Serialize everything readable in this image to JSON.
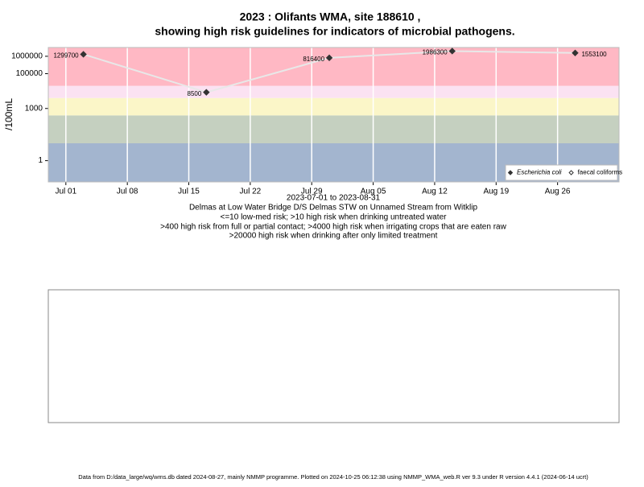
{
  "chart_data": {
    "type": "line",
    "title": "2023 : Olifants WMA, site 188610 ,",
    "subtitle": "showing high risk guidelines for indicators of microbial pathogens.",
    "y_label": "/100mL",
    "x_label": "2023-07-01 to 2023-08-31",
    "notes": [
      "Delmas at Low Water Bridge D/S Delmas STW on Unnamed Stream from Witklip",
      "<=10 low-med risk; >10 high risk when drinking untreated water",
      ">400 high risk from full or partial contact; >4000 high risk when irrigating crops that are eaten raw",
      ">20000 high risk when drinking after only limited treatment"
    ],
    "footer": "Data from D:/data_large/wq/wms.db dated 2024-08-27, mainly NMMP programme. Plotted on 2024-10-25 06:12:38 using NMMP_WMA_web.R ver 9.3 under R version 4.4.1 (2024-06-14 ucrt)",
    "log_y": true,
    "x": [
      "2023-07-03",
      "2023-07-17",
      "2023-07-31",
      "2023-08-14",
      "2023-08-28"
    ],
    "xlim": [
      "2023-06-29",
      "2023-09-02"
    ],
    "xticks": [
      {
        "value": "2023-07-01",
        "label": "Jul 01"
      },
      {
        "value": "2023-07-08",
        "label": "Jul 08"
      },
      {
        "value": "2023-07-15",
        "label": "Jul 15"
      },
      {
        "value": "2023-07-22",
        "label": "Jul 22"
      },
      {
        "value": "2023-07-29",
        "label": "Jul 29"
      },
      {
        "value": "2023-08-05",
        "label": "Aug 05"
      },
      {
        "value": "2023-08-12",
        "label": "Aug 12"
      },
      {
        "value": "2023-08-19",
        "label": "Aug 19"
      },
      {
        "value": "2023-08-26",
        "label": "Aug 26"
      }
    ],
    "ylim": [
      0.06,
      3200000
    ],
    "yticks": [
      1,
      1000,
      100000,
      1000000
    ],
    "bands": [
      {
        "from": 0.06,
        "to": 10,
        "color": "#a3b5cf"
      },
      {
        "from": 10,
        "to": 400,
        "color": "#c5d0c0"
      },
      {
        "from": 400,
        "to": 4000,
        "color": "#fbf6c8"
      },
      {
        "from": 4000,
        "to": 20000,
        "color": "#fbe2f2"
      },
      {
        "from": 20000,
        "to": 3200000,
        "color": "#ffb8c4"
      }
    ],
    "grid": true,
    "legend": "bottom-right",
    "series": [
      {
        "name": "Escherichia coli",
        "color": "#333333",
        "marker": "filled",
        "values": [
          1299700,
          8500,
          816400,
          1986300,
          1553100
        ]
      },
      {
        "name": "faecal coliforms",
        "color": "#333333",
        "marker": "open",
        "values": [
          null,
          null,
          null,
          null,
          null
        ]
      }
    ]
  }
}
